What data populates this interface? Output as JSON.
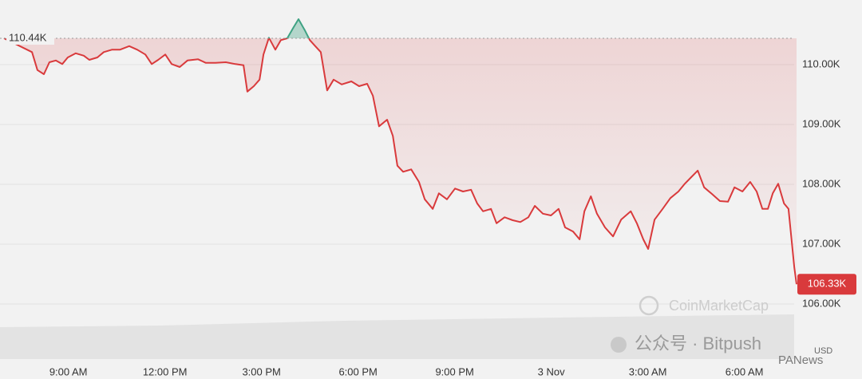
{
  "chart_data": {
    "type": "line",
    "x": [
      7.0,
      7.87,
      8.04,
      8.24,
      8.41,
      8.61,
      8.81,
      8.98,
      9.23,
      9.48,
      9.65,
      9.9,
      10.1,
      10.35,
      10.6,
      10.89,
      11.14,
      11.39,
      11.59,
      11.79,
      12.01,
      12.21,
      12.46,
      12.7,
      13.03,
      13.27,
      13.57,
      13.89,
      14.19,
      14.44,
      14.56,
      14.76,
      14.94,
      15.06,
      15.23,
      15.43,
      15.6,
      15.8,
      15.98,
      16.15,
      16.35,
      16.5,
      16.67,
      16.84,
      17.04,
      17.24,
      17.49,
      17.79,
      18.03,
      18.28,
      18.46,
      18.65,
      18.9,
      19.08,
      19.22,
      19.4,
      19.65,
      19.89,
      20.07,
      20.32,
      20.51,
      20.76,
      21.01,
      21.26,
      21.51,
      21.7,
      21.88,
      22.13,
      22.3,
      22.55,
      22.8,
      23.04,
      23.29,
      23.49,
      23.74,
      23.99,
      24.23,
      24.43,
      24.68,
      24.88,
      25.03,
      25.23,
      25.42,
      25.67,
      25.92,
      26.17,
      26.47,
      26.66,
      26.86,
      27.01,
      27.21,
      27.46,
      27.7,
      27.95,
      28.15,
      28.35,
      28.55,
      28.75,
      28.99,
      29.24,
      29.49,
      29.69,
      29.94,
      30.18,
      30.38,
      30.56,
      30.73,
      30.88,
      31.05,
      31.23,
      31.37,
      31.55,
      31.62
    ],
    "series": [
      {
        "color": "#d93a3c",
        "color_above": "#3fa283",
        "values": [
          110440,
          110210,
          109910,
          109840,
          110040,
          110070,
          110010,
          110120,
          110190,
          110150,
          110080,
          110120,
          110210,
          110250,
          110250,
          110310,
          110250,
          110170,
          110010,
          110080,
          110170,
          110010,
          109960,
          110070,
          110090,
          110030,
          110030,
          110040,
          110010,
          109990,
          109550,
          109640,
          109750,
          110170,
          110450,
          110250,
          110410,
          110440,
          110610,
          110760,
          110570,
          110410,
          110310,
          110210,
          109570,
          109750,
          109670,
          109720,
          109640,
          109680,
          109480,
          108970,
          109080,
          108810,
          108310,
          108210,
          108250,
          108040,
          107750,
          107590,
          107850,
          107750,
          107930,
          107880,
          107910,
          107680,
          107550,
          107590,
          107350,
          107450,
          107400,
          107370,
          107450,
          107640,
          107510,
          107480,
          107590,
          107280,
          107210,
          107080,
          107550,
          107800,
          107510,
          107280,
          107130,
          107410,
          107550,
          107350,
          107080,
          106920,
          107410,
          107590,
          107770,
          107880,
          108010,
          108120,
          108230,
          107950,
          107840,
          107720,
          107710,
          107950,
          107880,
          108040,
          107880,
          107590,
          107590,
          107850,
          108010,
          107680,
          107590,
          106610,
          106330
        ]
      }
    ],
    "xlim": [
      7,
      31.62
    ],
    "xticks": [
      {
        "value": 9,
        "label": "9:00 AM"
      },
      {
        "value": 12,
        "label": "12:00 PM"
      },
      {
        "value": 15,
        "label": "3:00 PM"
      },
      {
        "value": 18,
        "label": "6:00 PM"
      },
      {
        "value": 21,
        "label": "9:00 PM"
      },
      {
        "value": 24,
        "label": "3 Nov"
      },
      {
        "value": 27,
        "label": "3:00 AM"
      },
      {
        "value": 30,
        "label": "6:00 AM"
      }
    ],
    "ylim": [
      105000,
      111080
    ],
    "yticks": [
      {
        "value": 106000,
        "label": "106.00K"
      },
      {
        "value": 107000,
        "label": "107.00K"
      },
      {
        "value": 108000,
        "label": "108.00K"
      },
      {
        "value": 109000,
        "label": "109.00K"
      },
      {
        "value": 110000,
        "label": "110.00K"
      }
    ],
    "grid": true,
    "reference": {
      "value": 110440,
      "label": "110.44K"
    },
    "last_price": {
      "value": 106330,
      "label": "106.33K"
    },
    "currency": "USD",
    "watermarks": [
      "CoinMarketCap",
      "公众号 · Bitpush",
      "PANews"
    ]
  }
}
